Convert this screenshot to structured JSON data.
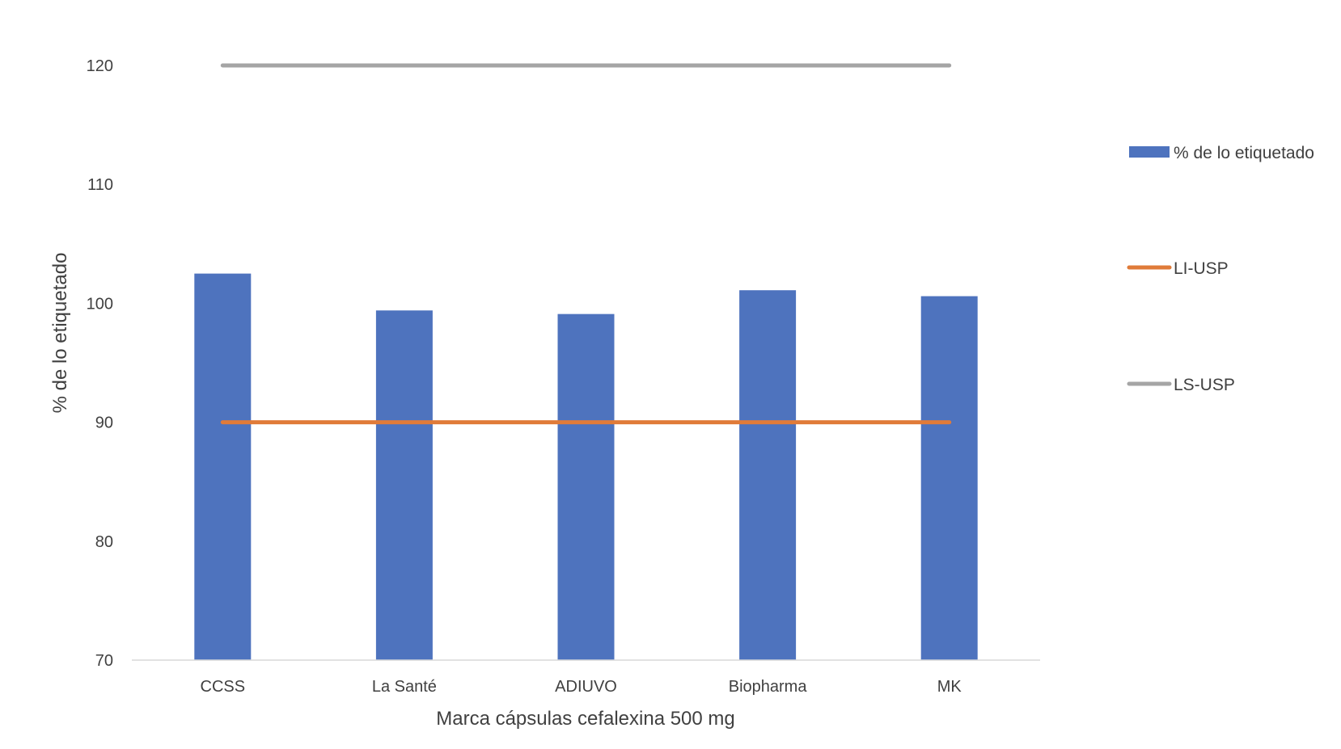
{
  "chart_data": {
    "type": "bar",
    "title": "",
    "xlabel": "Marca cápsulas cefalexina 500 mg",
    "ylabel": "% de lo etiquetado",
    "categories": [
      "CCSS",
      "La Santé",
      "ADIUVO",
      "Biopharma",
      "MK"
    ],
    "series": [
      {
        "name": "% de lo etiquetado",
        "type": "bar",
        "values": [
          102.5,
          99.4,
          99.1,
          101.1,
          100.6
        ],
        "color": "#4E73BE"
      },
      {
        "name": "LI-USP",
        "type": "line",
        "values": [
          90,
          90,
          90,
          90,
          90
        ],
        "color": "#E07B39"
      },
      {
        "name": "LS-USP",
        "type": "line",
        "values": [
          120,
          120,
          120,
          120,
          120
        ],
        "color": "#A5A5A5"
      }
    ],
    "ylim": [
      70,
      120
    ],
    "yticks": [
      70,
      80,
      90,
      100,
      110,
      120
    ],
    "grid": false,
    "legend_position": "right"
  }
}
